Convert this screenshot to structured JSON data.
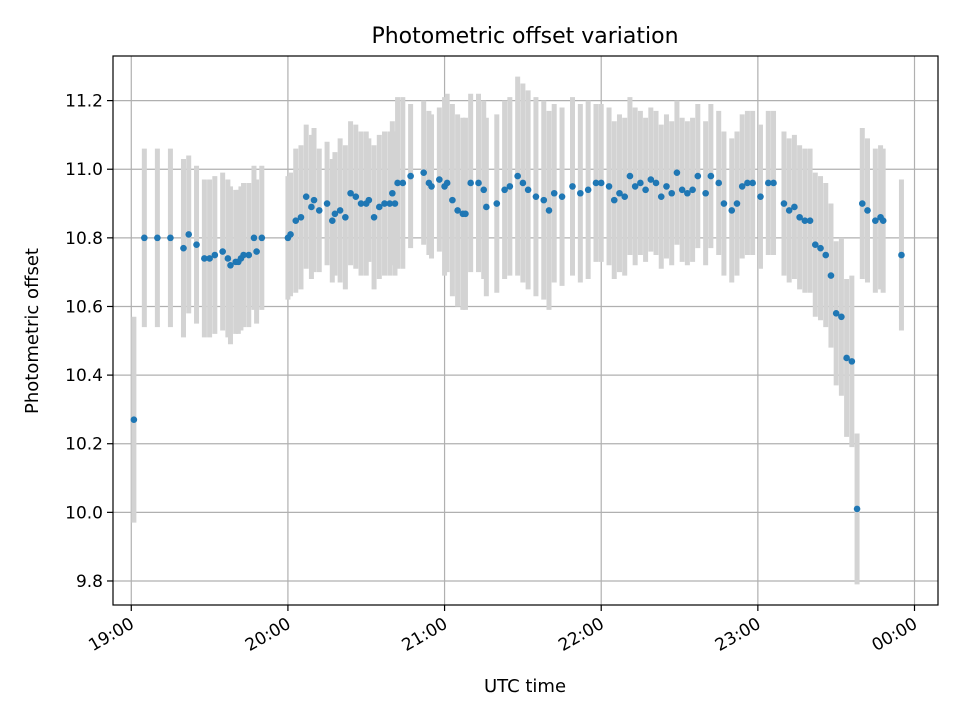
{
  "chart_data": {
    "type": "scatter",
    "title": "Photometric offset variation",
    "xlabel": "UTC time",
    "ylabel": "Photometric offset",
    "xlim": [
      "18:53",
      "00:09"
    ],
    "ylim": [
      9.73,
      11.33
    ],
    "x_ticks": [
      "19:00",
      "20:00",
      "21:00",
      "22:00",
      "23:00",
      "00:00"
    ],
    "y_ticks": [
      "9.8",
      "10.0",
      "10.2",
      "10.4",
      "10.6",
      "10.8",
      "11.0",
      "11.2"
    ],
    "grid": true,
    "colors": {
      "point": "#1f77b4",
      "errorbar": "#d3d3d3",
      "grid": "#b0b0b0"
    },
    "x_is_time": true,
    "series": [
      {
        "x": [
          "19:01",
          "19:05",
          "19:10",
          "19:15",
          "19:20",
          "19:22",
          "19:25",
          "19:28",
          "19:30",
          "19:32",
          "19:35",
          "19:37",
          "19:38",
          "19:40",
          "19:41",
          "19:42",
          "19:43",
          "19:45",
          "19:47",
          "19:48",
          "19:50",
          "20:00",
          "20:01",
          "20:03",
          "20:05",
          "20:07",
          "20:09",
          "20:10",
          "20:12",
          "20:15",
          "20:17",
          "20:18",
          "20:20",
          "20:22",
          "20:24",
          "20:26",
          "20:28",
          "20:30",
          "20:31",
          "20:33",
          "20:35",
          "20:37",
          "20:39",
          "20:40",
          "20:41",
          "20:42",
          "20:44",
          "20:47",
          "20:52",
          "20:54",
          "20:55",
          "20:58",
          "21:00",
          "21:01",
          "21:03",
          "21:05",
          "21:07",
          "21:08",
          "21:10",
          "21:13",
          "21:15",
          "21:16",
          "21:20",
          "21:23",
          "21:25",
          "21:28",
          "21:30",
          "21:32",
          "21:35",
          "21:38",
          "21:40",
          "21:42",
          "21:45",
          "21:49",
          "21:52",
          "21:55",
          "21:58",
          "22:00",
          "22:03",
          "22:05",
          "22:07",
          "22:09",
          "22:11",
          "22:13",
          "22:15",
          "22:17",
          "22:19",
          "22:21",
          "22:23",
          "22:25",
          "22:27",
          "22:29",
          "22:31",
          "22:33",
          "22:35",
          "22:37",
          "22:40",
          "22:42",
          "22:45",
          "22:47",
          "22:50",
          "22:52",
          "22:54",
          "22:56",
          "22:58",
          "23:01",
          "23:04",
          "23:06",
          "23:10",
          "23:12",
          "23:14",
          "23:16",
          "23:18",
          "23:20",
          "23:22",
          "23:24",
          "23:26",
          "23:28",
          "23:30",
          "23:32",
          "23:34",
          "23:36",
          "23:38",
          "23:40",
          "23:42",
          "23:45",
          "23:47",
          "23:48",
          "23:55"
        ],
        "y": [
          10.27,
          10.8,
          10.8,
          10.8,
          10.77,
          10.81,
          10.78,
          10.74,
          10.74,
          10.75,
          10.76,
          10.74,
          10.72,
          10.73,
          10.73,
          10.74,
          10.75,
          10.75,
          10.8,
          10.76,
          10.8,
          10.8,
          10.81,
          10.85,
          10.86,
          10.92,
          10.89,
          10.91,
          10.88,
          10.9,
          10.85,
          10.87,
          10.88,
          10.86,
          10.93,
          10.92,
          10.9,
          10.9,
          10.91,
          10.86,
          10.89,
          10.9,
          10.9,
          10.93,
          10.9,
          10.96,
          10.96,
          10.98,
          10.99,
          10.96,
          10.95,
          10.97,
          10.95,
          10.96,
          10.91,
          10.88,
          10.87,
          10.87,
          10.96,
          10.96,
          10.94,
          10.89,
          10.9,
          10.94,
          10.95,
          10.98,
          10.96,
          10.94,
          10.92,
          10.91,
          10.88,
          10.93,
          10.92,
          10.95,
          10.93,
          10.94,
          10.96,
          10.96,
          10.95,
          10.91,
          10.93,
          10.92,
          10.98,
          10.95,
          10.96,
          10.94,
          10.97,
          10.96,
          10.92,
          10.95,
          10.93,
          10.99,
          10.94,
          10.93,
          10.94,
          10.98,
          10.93,
          10.98,
          10.96,
          10.9,
          10.88,
          10.9,
          10.95,
          10.96,
          10.96,
          10.92,
          10.96,
          10.96,
          10.9,
          10.88,
          10.89,
          10.86,
          10.85,
          10.85,
          10.78,
          10.77,
          10.75,
          10.69,
          10.58,
          10.57,
          10.45,
          10.44,
          10.01,
          10.9,
          10.88,
          10.85,
          10.86,
          10.85,
          10.75
        ],
        "yerr": [
          0.3,
          0.26,
          0.26,
          0.26,
          0.26,
          0.23,
          0.23,
          0.23,
          0.23,
          0.23,
          0.23,
          0.23,
          0.23,
          0.21,
          0.21,
          0.21,
          0.21,
          0.21,
          0.21,
          0.21,
          0.21,
          0.18,
          0.18,
          0.21,
          0.21,
          0.21,
          0.21,
          0.21,
          0.18,
          0.18,
          0.18,
          0.18,
          0.21,
          0.21,
          0.21,
          0.21,
          0.21,
          0.21,
          0.18,
          0.21,
          0.21,
          0.21,
          0.21,
          0.21,
          0.21,
          0.25,
          0.25,
          0.21,
          0.21,
          0.21,
          0.21,
          0.21,
          0.26,
          0.26,
          0.28,
          0.28,
          0.28,
          0.28,
          0.26,
          0.26,
          0.26,
          0.26,
          0.26,
          0.26,
          0.26,
          0.29,
          0.29,
          0.29,
          0.29,
          0.29,
          0.29,
          0.26,
          0.26,
          0.26,
          0.26,
          0.26,
          0.23,
          0.23,
          0.23,
          0.23,
          0.23,
          0.23,
          0.23,
          0.23,
          0.21,
          0.21,
          0.21,
          0.21,
          0.21,
          0.21,
          0.21,
          0.21,
          0.21,
          0.21,
          0.21,
          0.21,
          0.21,
          0.21,
          0.21,
          0.21,
          0.21,
          0.21,
          0.21,
          0.21,
          0.21,
          0.21,
          0.21,
          0.21,
          0.21,
          0.21,
          0.21,
          0.21,
          0.21,
          0.21,
          0.21,
          0.21,
          0.21,
          0.21,
          0.21,
          0.23,
          0.23,
          0.25,
          0.22,
          0.22,
          0.21,
          0.21,
          0.21,
          0.21,
          0.22
        ]
      }
    ]
  }
}
